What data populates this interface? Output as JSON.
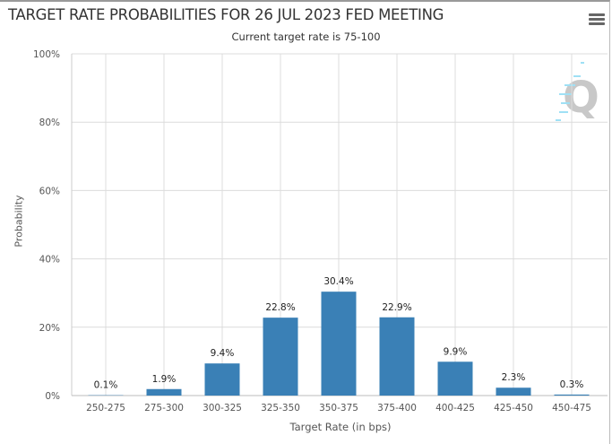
{
  "chart_data": {
    "type": "bar",
    "title": "TARGET RATE PROBABILITIES FOR 26 JUL 2023 FED MEETING",
    "subtitle": "Current target rate is 75-100",
    "xlabel": "Target Rate (in bps)",
    "ylabel": "Probability",
    "categories": [
      "250-275",
      "275-300",
      "300-325",
      "325-350",
      "350-375",
      "375-400",
      "400-425",
      "425-450",
      "450-475"
    ],
    "values": [
      0.1,
      1.9,
      9.4,
      22.8,
      30.4,
      22.9,
      9.9,
      2.3,
      0.3
    ],
    "data_labels": [
      "0.1%",
      "1.9%",
      "9.4%",
      "22.8%",
      "30.4%",
      "22.9%",
      "9.9%",
      "2.3%",
      "0.3%"
    ],
    "ylim": [
      0,
      100
    ],
    "yticks": [
      0,
      20,
      40,
      60,
      80,
      100
    ],
    "ytick_labels": [
      "0%",
      "20%",
      "40%",
      "60%",
      "80%",
      "100%"
    ],
    "grid": true,
    "bar_color": "#3a80b6"
  },
  "watermark": "Q",
  "menu_icon": "hamburger-menu-icon"
}
